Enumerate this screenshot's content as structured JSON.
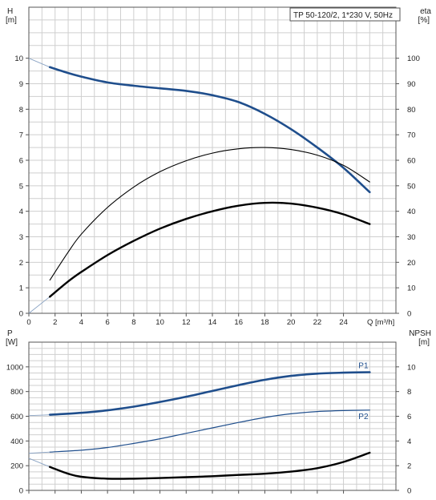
{
  "title_box": "TP 50-120/2, 1*230 V, 50Hz",
  "chart_data": [
    {
      "type": "line",
      "name": "pump-curve-head-eta",
      "xlabel": "Q [m³/h]",
      "ylabel": "H",
      "ylabel_unit": "[m]",
      "y2label": "eta",
      "y2label_unit": "[%]",
      "xlim": [
        0,
        28
      ],
      "ylim": [
        0,
        12
      ],
      "y2lim": [
        0,
        120
      ],
      "xticks": [
        0,
        2,
        4,
        6,
        8,
        10,
        12,
        14,
        16,
        18,
        20,
        22,
        24
      ],
      "xtick_labels": [
        "0",
        "2",
        "4",
        "6",
        "8",
        "10",
        "12",
        "14",
        "16",
        "18",
        "20",
        "22",
        "24"
      ],
      "yticks": [
        0,
        1,
        2,
        3,
        4,
        5,
        6,
        7,
        8,
        9,
        10
      ],
      "ytick_labels": [
        "0",
        "1",
        "2",
        "3",
        "4",
        "5",
        "6",
        "7",
        "8",
        "9",
        "10"
      ],
      "y2ticks": [
        0,
        10,
        20,
        30,
        40,
        50,
        60,
        70,
        80,
        90,
        100
      ],
      "y2tick_labels": [
        "0",
        "10",
        "20",
        "30",
        "40",
        "50",
        "60",
        "70",
        "80",
        "90",
        "100"
      ],
      "grid": true,
      "series": [
        {
          "key": "head",
          "axis": "left",
          "color": "#1f4e8c",
          "width": 2.6,
          "extension": {
            "x": [
              0,
              1.6
            ],
            "y": [
              10.0,
              9.65
            ]
          },
          "x": [
            1.6,
            3,
            4,
            6,
            8,
            10,
            12,
            14,
            16,
            18,
            20,
            22,
            24,
            26
          ],
          "y": [
            9.65,
            9.42,
            9.28,
            9.05,
            8.92,
            8.82,
            8.72,
            8.55,
            8.28,
            7.82,
            7.22,
            6.5,
            5.7,
            4.75
          ]
        },
        {
          "key": "eta",
          "axis": "right",
          "color": "#000000",
          "width": 1.1,
          "x": [
            1.6,
            3,
            4,
            6,
            8,
            10,
            12,
            14,
            16,
            18,
            20,
            22,
            24,
            26
          ],
          "y": [
            13.0,
            24.0,
            31.0,
            41.5,
            49.5,
            55.5,
            59.8,
            62.8,
            64.5,
            65.0,
            64.2,
            62.0,
            58.0,
            51.5
          ]
        },
        {
          "key": "eta2",
          "axis": "left",
          "color": "#000000",
          "width": 2.4,
          "extension": {
            "x": [
              0,
              1.6
            ],
            "y": [
              0,
              0.65
            ]
          },
          "x": [
            1.6,
            3,
            4,
            6,
            8,
            10,
            12,
            14,
            16,
            18,
            20,
            22,
            24,
            26
          ],
          "y": [
            0.65,
            1.25,
            1.62,
            2.28,
            2.84,
            3.32,
            3.7,
            4.0,
            4.22,
            4.33,
            4.3,
            4.14,
            3.88,
            3.5
          ]
        }
      ]
    },
    {
      "type": "line",
      "name": "pump-curve-power-npsh",
      "xlabel": "",
      "ylabel": "P",
      "ylabel_unit": "[W]",
      "y2label": "NPSH",
      "y2label_unit": "[m]",
      "xlim": [
        0,
        28
      ],
      "ylim": [
        0,
        1200
      ],
      "y2lim": [
        0,
        12
      ],
      "xticks": [
        0,
        2,
        4,
        6,
        8,
        10,
        12,
        14,
        16,
        18,
        20,
        22,
        24
      ],
      "yticks": [
        0,
        200,
        400,
        600,
        800,
        1000
      ],
      "ytick_labels": [
        "0",
        "200",
        "400",
        "600",
        "800",
        "1000"
      ],
      "y2ticks": [
        0,
        2,
        4,
        6,
        8,
        10
      ],
      "y2tick_labels": [
        "0",
        "2",
        "4",
        "6",
        "8",
        "10"
      ],
      "grid": true,
      "series": [
        {
          "key": "P1",
          "name": "P1",
          "axis": "left",
          "color": "#1f4e8c",
          "width": 2.6,
          "extension": {
            "x": [
              0,
              1.6
            ],
            "y": [
              605,
              612
            ]
          },
          "x": [
            1.6,
            4,
            6,
            8,
            10,
            12,
            14,
            16,
            18,
            20,
            22,
            24,
            26
          ],
          "y": [
            612,
            628,
            648,
            678,
            716,
            758,
            805,
            852,
            895,
            927,
            945,
            953,
            957
          ]
        },
        {
          "key": "P2",
          "name": "P2",
          "axis": "left",
          "color": "#1f4e8c",
          "width": 1.2,
          "extension": {
            "x": [
              0,
              1.6
            ],
            "y": [
              300,
              310
            ]
          },
          "x": [
            1.6,
            4,
            6,
            8,
            10,
            12,
            14,
            16,
            18,
            20,
            22,
            24,
            26
          ],
          "y": [
            310,
            325,
            347,
            380,
            418,
            462,
            506,
            550,
            590,
            620,
            638,
            646,
            650
          ]
        },
        {
          "key": "NPSH",
          "axis": "right",
          "color": "#000000",
          "width": 2.4,
          "extension": {
            "x": [
              0,
              1.6
            ],
            "y": [
              2.6,
              1.9
            ]
          },
          "x": [
            1.6,
            3,
            4,
            6,
            8,
            10,
            12,
            14,
            16,
            18,
            20,
            22,
            24,
            26
          ],
          "y": [
            1.9,
            1.35,
            1.1,
            0.95,
            0.95,
            1.0,
            1.07,
            1.15,
            1.25,
            1.35,
            1.52,
            1.8,
            2.3,
            3.05
          ]
        }
      ]
    }
  ]
}
